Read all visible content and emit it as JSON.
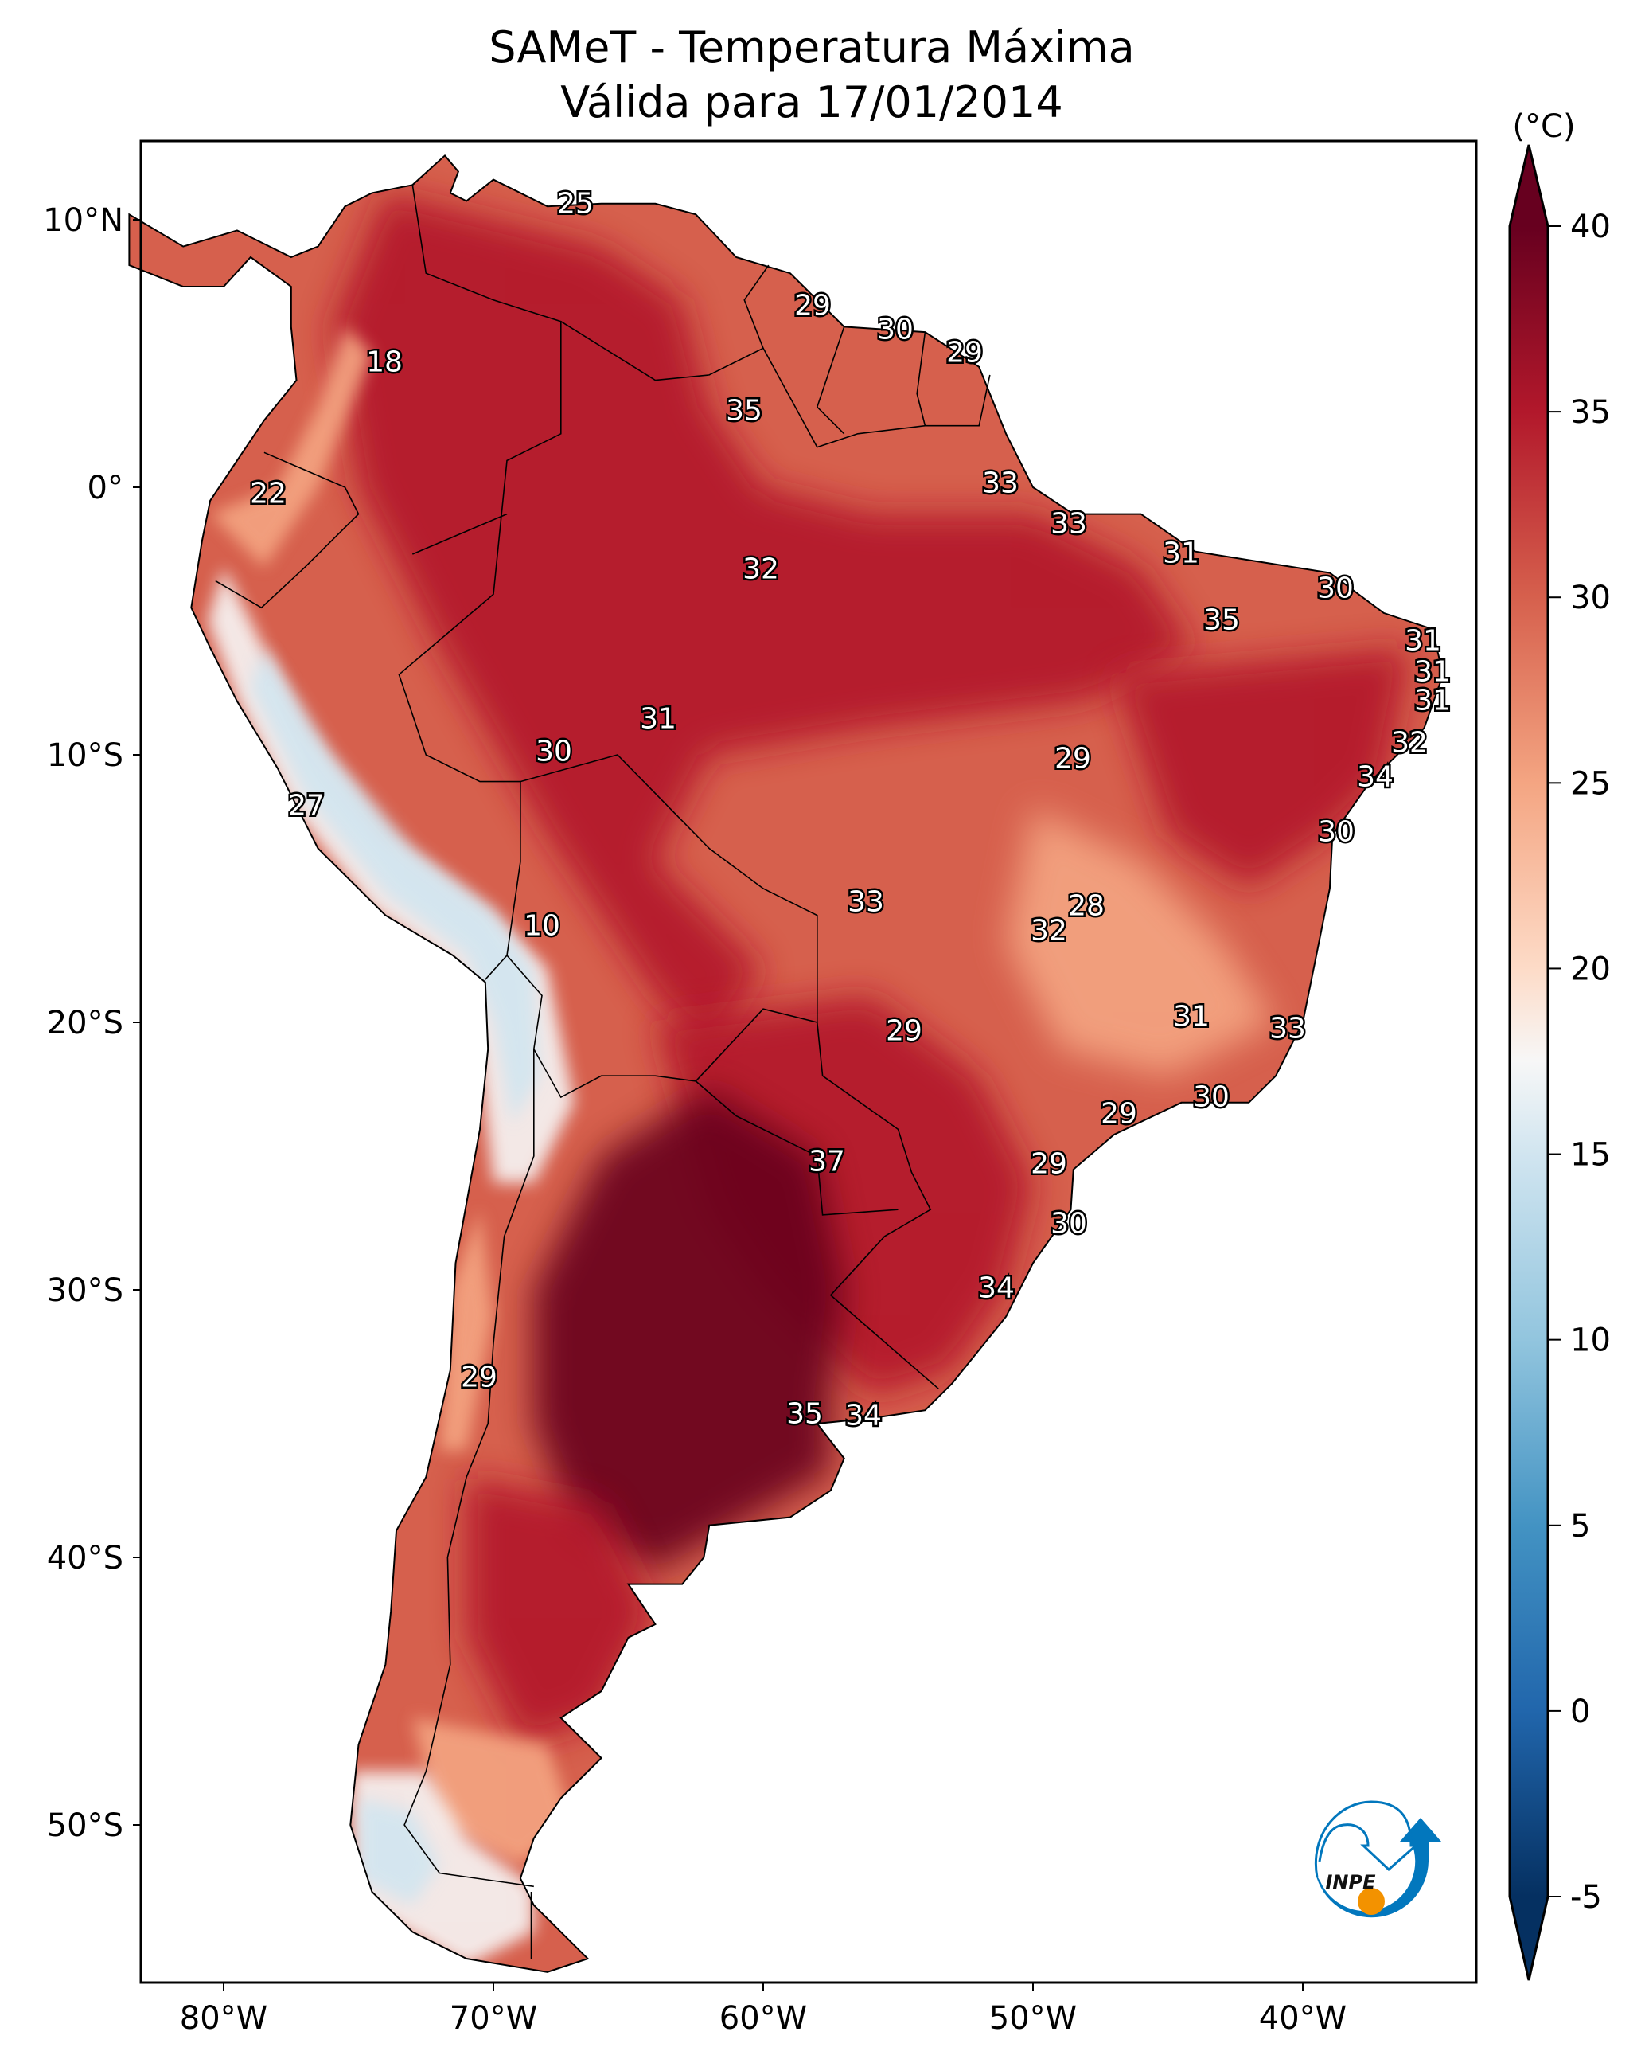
{
  "title": {
    "line1": "SAMeT - Temperatura Máxima",
    "line2": "Válida para 17/01/2014"
  },
  "colorbar": {
    "unit": "(°C)",
    "ticks": [
      "40",
      "35",
      "30",
      "25",
      "20",
      "15",
      "10",
      "5",
      "0",
      "-5"
    ],
    "tick_values": [
      40,
      35,
      30,
      25,
      20,
      15,
      10,
      5,
      0,
      -5
    ],
    "range": [
      -5,
      40
    ],
    "colormap_stops": [
      {
        "v": 40,
        "c": "#67001f"
      },
      {
        "v": 35,
        "c": "#b2182b"
      },
      {
        "v": 30,
        "c": "#d6604d"
      },
      {
        "v": 25,
        "c": "#f4a582"
      },
      {
        "v": 20,
        "c": "#fddbc7"
      },
      {
        "v": 17.5,
        "c": "#f7f7f7"
      },
      {
        "v": 15,
        "c": "#d1e5f0"
      },
      {
        "v": 10,
        "c": "#92c5de"
      },
      {
        "v": 5,
        "c": "#4393c3"
      },
      {
        "v": 0,
        "c": "#2166ac"
      },
      {
        "v": -5,
        "c": "#053061"
      }
    ]
  },
  "axes": {
    "lon_ticks": [
      "80°W",
      "70°W",
      "60°W",
      "50°W",
      "40°W"
    ],
    "lon_values": [
      -80,
      -70,
      -60,
      -50,
      -40
    ],
    "lat_ticks": [
      "10°N",
      "0°",
      "10°S",
      "20°S",
      "30°S",
      "40°S",
      "50°S"
    ],
    "lat_values": [
      10,
      0,
      -10,
      -20,
      -30,
      -40,
      -50
    ]
  },
  "contour_labels": [
    "25",
    "29",
    "30",
    "29",
    "18",
    "35",
    "22",
    "33",
    "33",
    "31",
    "32",
    "30",
    "35",
    "31",
    "31",
    "31",
    "31",
    "30",
    "29",
    "32",
    "34",
    "27",
    "30",
    "10",
    "33",
    "28",
    "32",
    "31",
    "33",
    "29",
    "30",
    "29",
    "37",
    "29",
    "30",
    "34",
    "29",
    "35",
    "34"
  ],
  "logo": {
    "text": "INPE",
    "blue": "#0277bd",
    "orange": "#f39200"
  }
}
